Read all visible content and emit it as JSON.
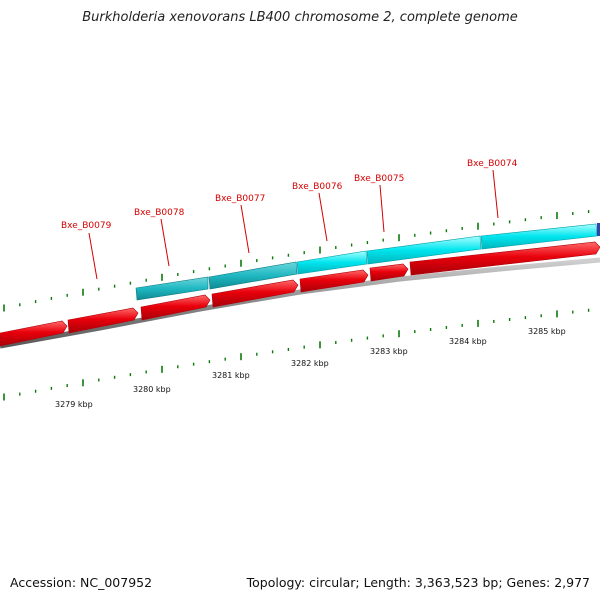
{
  "title": "Burkholderia xenovorans LB400 chromosome 2, complete genome",
  "footer": {
    "accession": "Accession: NC_007952",
    "stats": "Topology: circular; Length: 3,363,523 bp; Genes: 2,977"
  },
  "colors": {
    "cds_forward": "#e8000b",
    "gene_cyan": "#00e5ee",
    "gene_teal": "#1fb8c2",
    "backbone": "#8a8a8a",
    "tick": "#0b7a0b",
    "label": "#d40000"
  },
  "gene_labels": [
    {
      "text": "Bxe_B0079"
    },
    {
      "text": "Bxe_B0078"
    },
    {
      "text": "Bxe_B0077"
    },
    {
      "text": "Bxe_B0076"
    },
    {
      "text": "Bxe_B0075"
    },
    {
      "text": "Bxe_B0074"
    }
  ],
  "kbp_labels": [
    {
      "text": "3279 kbp"
    },
    {
      "text": "3280 kbp"
    },
    {
      "text": "3281 kbp"
    },
    {
      "text": "3282 kbp"
    },
    {
      "text": "3283 kbp"
    },
    {
      "text": "3284 kbp"
    },
    {
      "text": "3285 kbp"
    }
  ]
}
